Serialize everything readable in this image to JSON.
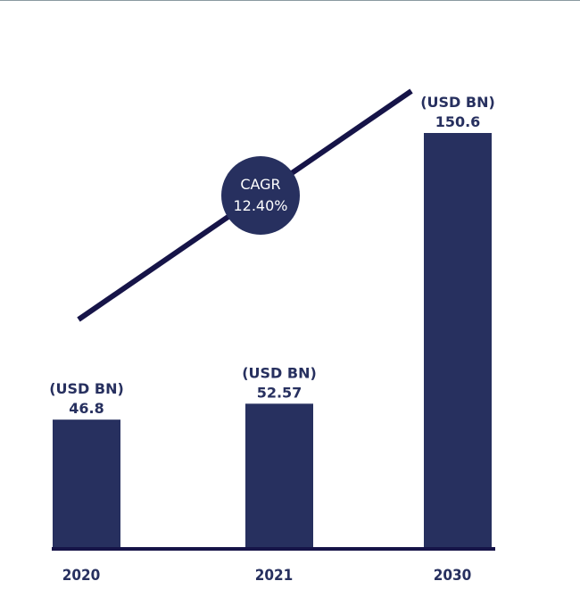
{
  "chart_data": {
    "type": "bar",
    "categories": [
      "2020",
      "2021",
      "2030"
    ],
    "values": [
      46.8,
      52.57,
      150.6
    ],
    "unit": "(USD BN)",
    "annotation": {
      "title": "CAGR",
      "value": "12.40%"
    },
    "colors": {
      "bar": "#27305f",
      "trend_line": "#161448",
      "text": "#27305f",
      "cagr_text": "#ffffff"
    }
  }
}
